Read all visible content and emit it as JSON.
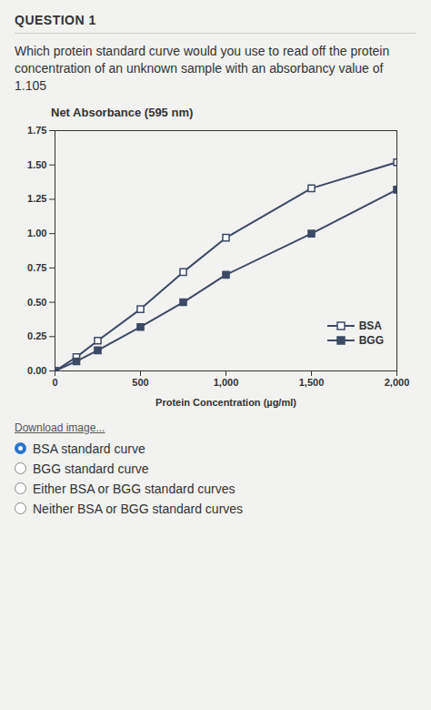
{
  "page": {
    "heading": "QUESTION 1",
    "question": "Which protein standard curve would you use to read off the protein concentration of an unknown sample with an absorbancy value of 1.105",
    "download": "Download image...",
    "options": [
      "BSA standard curve",
      "BGG standard curve",
      "Either BSA or BGG standard curves",
      "Neither BSA or BGG standard curves"
    ],
    "selected": 0
  },
  "chart_data": {
    "type": "line",
    "x_label": "Protein Concentration (µg/ml)",
    "y_label": "Net Absorbance (595 nm)",
    "x": [
      0,
      125,
      250,
      500,
      750,
      1000,
      1500,
      2000
    ],
    "series": [
      {
        "name": "BSA",
        "color": "#3d4a66",
        "marker": "square_open",
        "values": [
          0,
          0.1,
          0.22,
          0.45,
          0.72,
          0.97,
          1.33,
          1.52
        ]
      },
      {
        "name": "BGG",
        "color": "#3d4a66",
        "marker": "square",
        "values": [
          0,
          0.07,
          0.15,
          0.32,
          0.5,
          0.7,
          1.0,
          1.32
        ]
      }
    ],
    "xlim": [
      0,
      2000
    ],
    "xticks": [
      0,
      500,
      {
        "value": 1000,
        "label": "1,000"
      },
      {
        "value": 1500,
        "label": "1,500"
      },
      {
        "value": 2000,
        "label": "2,000"
      }
    ],
    "ylim": [
      0,
      1.75
    ],
    "yticks": [
      {
        "value": 0,
        "label": "0.00"
      },
      {
        "value": 0.25,
        "label": "0.25"
      },
      {
        "value": 0.5,
        "label": "0.50"
      },
      {
        "value": 0.75,
        "label": "0.75"
      },
      {
        "value": 1,
        "label": "1.00"
      },
      {
        "value": 1.25,
        "label": "1.25"
      },
      {
        "value": 1.5,
        "label": "1.50"
      },
      {
        "value": 1.75,
        "label": "1.75"
      }
    ],
    "legend": "bottom-right",
    "grid": false
  }
}
